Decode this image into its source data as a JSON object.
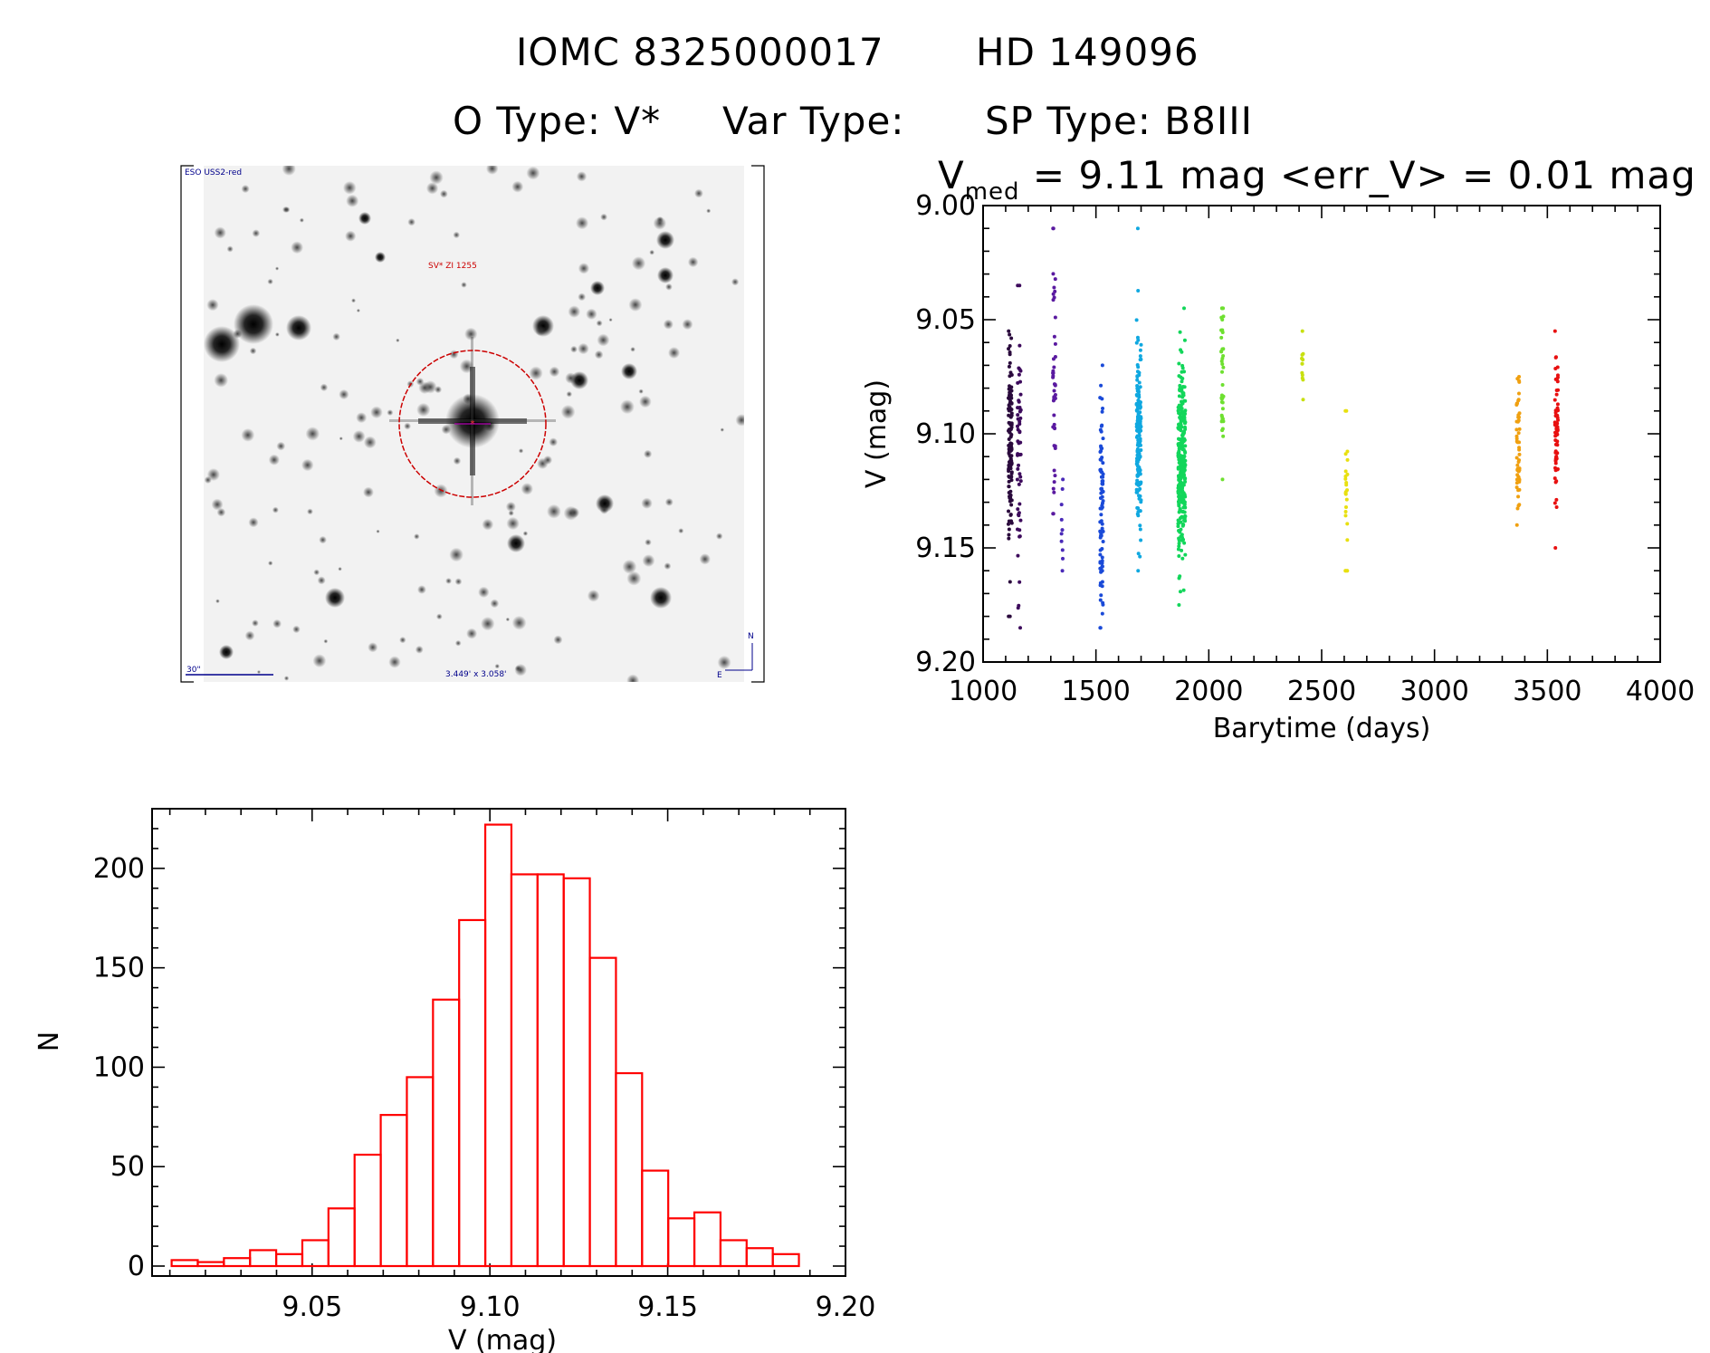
{
  "header": {
    "line1_id": "IOMC 8325000017",
    "line1_name": "HD 149096",
    "otype": "O Type: V*",
    "vartype": "Var Type:",
    "sptype": "SP Type: B8III"
  },
  "finder_image": {
    "survey_label": "ESO USS2-red",
    "object_label": "SV* ZI 1255",
    "scale_label": "30\"",
    "size_label": "3.449' x 3.058'",
    "north_label": "N",
    "east_label": "E",
    "colors": {
      "star": "#000000",
      "marker": "#cc0000",
      "labels": "#00008b"
    }
  },
  "lightcurve": {
    "title_prefix": "V",
    "title_subscript": "med",
    "title_rest": " = 9.11 mag <err_V> = 0.01 mag",
    "chart_data": {
      "type": "scatter",
      "xlabel": "Barytime (days)",
      "ylabel": "V (mag)",
      "xlim": [
        1000,
        4000
      ],
      "ylim": [
        9.2,
        9.0
      ],
      "x_ticks": [
        1000,
        1500,
        2000,
        2500,
        3000,
        3500,
        4000
      ],
      "y_ticks": [
        "9.00",
        "9.05",
        "9.10",
        "9.15",
        "9.20"
      ],
      "groups": [
        {
          "x": 1120,
          "x_spread": 8,
          "center": 9.105,
          "sigma": 0.02,
          "min": 9.055,
          "max": 9.18,
          "n": 130,
          "color": "#2a0a3c"
        },
        {
          "x": 1160,
          "x_spread": 8,
          "center": 9.115,
          "sigma": 0.03,
          "min": 9.035,
          "max": 9.185,
          "n": 55,
          "color": "#3d0a5c"
        },
        {
          "x": 1315,
          "x_spread": 6,
          "center": 9.085,
          "sigma": 0.025,
          "min": 9.01,
          "max": 9.135,
          "n": 45,
          "color": "#5a1aa0"
        },
        {
          "x": 1350,
          "x_spread": 4,
          "center": 9.14,
          "sigma": 0.012,
          "min": 9.12,
          "max": 9.16,
          "n": 10,
          "color": "#4a2ab8"
        },
        {
          "x": 1525,
          "x_spread": 7,
          "center": 9.13,
          "sigma": 0.025,
          "min": 9.07,
          "max": 9.185,
          "n": 90,
          "color": "#1a4ad8"
        },
        {
          "x": 1690,
          "x_spread": 10,
          "center": 9.1,
          "sigma": 0.022,
          "min": 9.01,
          "max": 9.16,
          "n": 170,
          "color": "#10a8e0"
        },
        {
          "x": 1880,
          "x_spread": 16,
          "center": 9.11,
          "sigma": 0.022,
          "min": 9.045,
          "max": 9.175,
          "n": 280,
          "color": "#12d65a"
        },
        {
          "x": 2060,
          "x_spread": 5,
          "center": 9.075,
          "sigma": 0.018,
          "min": 9.045,
          "max": 9.12,
          "n": 40,
          "color": "#6ee030"
        },
        {
          "x": 2415,
          "x_spread": 3,
          "center": 9.07,
          "sigma": 0.008,
          "min": 9.055,
          "max": 9.085,
          "n": 12,
          "color": "#c8e010"
        },
        {
          "x": 2610,
          "x_spread": 5,
          "center": 9.125,
          "sigma": 0.02,
          "min": 9.09,
          "max": 9.16,
          "n": 25,
          "color": "#e8e010"
        },
        {
          "x": 3370,
          "x_spread": 7,
          "center": 9.105,
          "sigma": 0.015,
          "min": 9.075,
          "max": 9.14,
          "n": 55,
          "color": "#f0a010"
        },
        {
          "x": 3540,
          "x_spread": 7,
          "center": 9.1,
          "sigma": 0.015,
          "min": 9.055,
          "max": 9.15,
          "n": 70,
          "color": "#e81010"
        }
      ]
    }
  },
  "histogram": {
    "chart_data": {
      "type": "bar",
      "xlabel": "V (mag)",
      "ylabel": "N",
      "xlim": [
        9.005,
        9.2
      ],
      "ylim": [
        0,
        230
      ],
      "x_ticks": [
        "9.05",
        "9.10",
        "9.15",
        "9.20"
      ],
      "y_ticks": [
        "0",
        "50",
        "100",
        "150",
        "200"
      ],
      "bin_start": 9.0105,
      "bin_width": 0.00735,
      "values": [
        3,
        2,
        4,
        8,
        6,
        13,
        29,
        56,
        76,
        95,
        134,
        174,
        222,
        197,
        197,
        195,
        155,
        97,
        48,
        24,
        27,
        13,
        9,
        6
      ],
      "color": "#ff0000"
    }
  }
}
